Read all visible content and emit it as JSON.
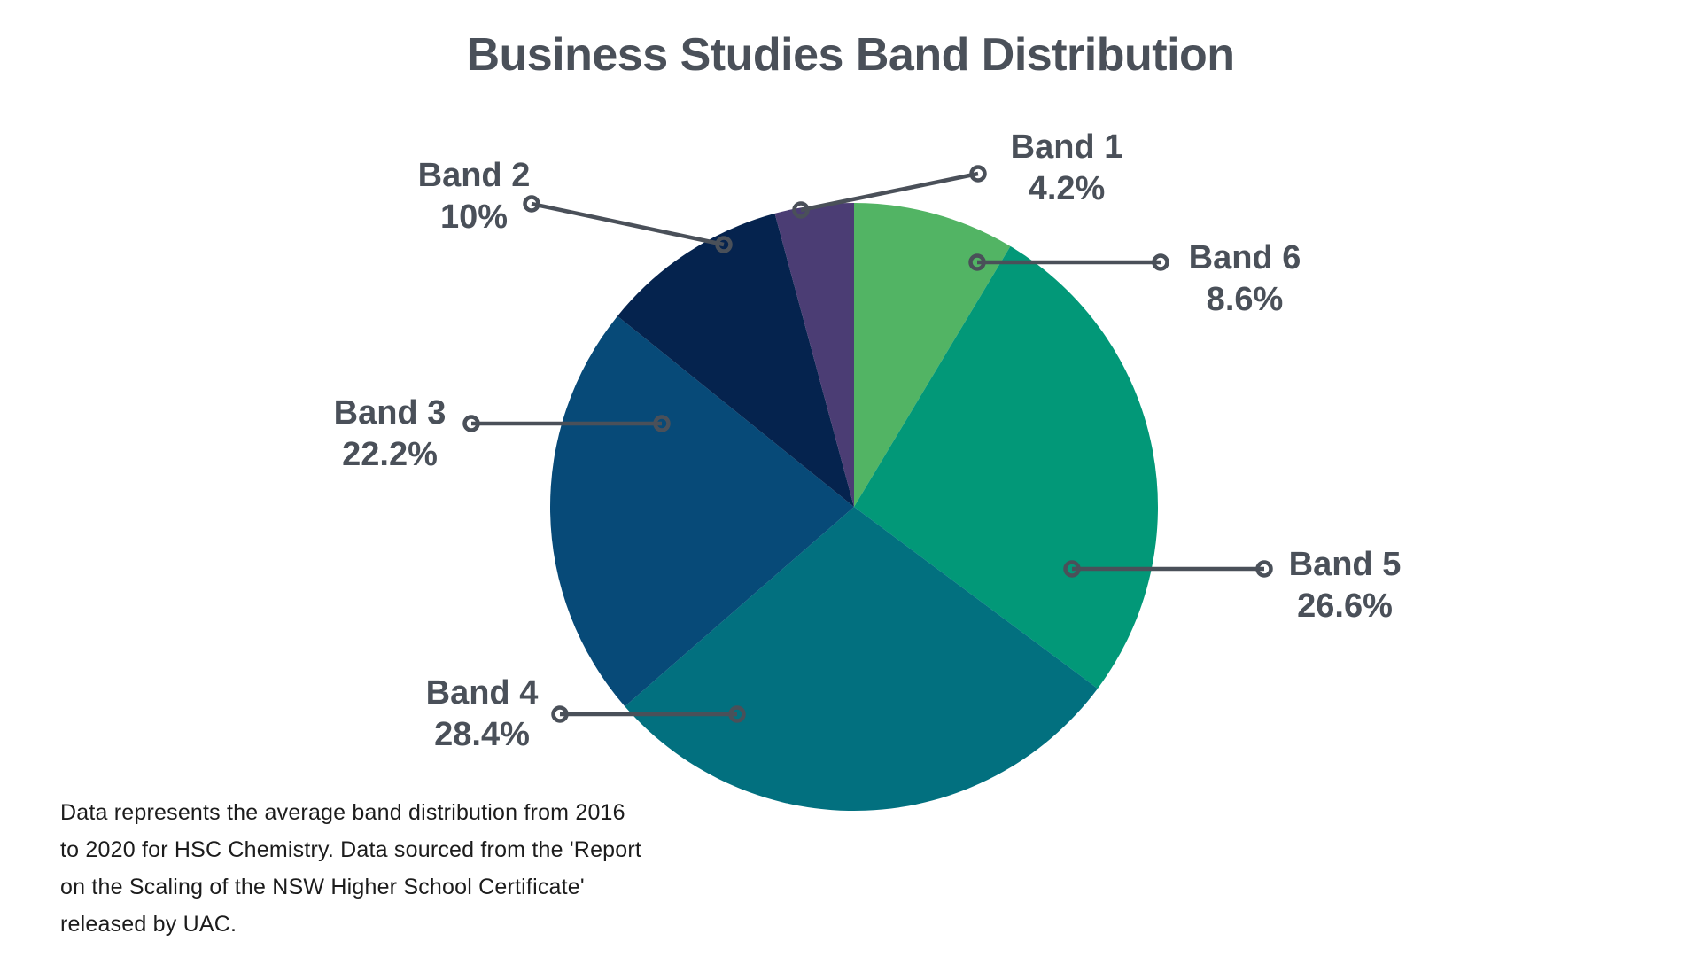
{
  "title": "Business Studies Band Distribution",
  "colors": {
    "background": "#ffffff",
    "heading_text": "#4a5059",
    "label_text": "#4a5059",
    "leader_line": "#4a5059",
    "footnote_text": "#1c1c1c"
  },
  "chart_data": {
    "type": "pie",
    "title": "Business Studies Band Distribution",
    "start_angle_deg": 0,
    "direction": "clockwise",
    "legend_position": "none",
    "slices": [
      {
        "label": "Band 6",
        "value": 8.6,
        "display": "8.6%",
        "color": "#52b464"
      },
      {
        "label": "Band 5",
        "value": 26.6,
        "display": "26.6%",
        "color": "#029878"
      },
      {
        "label": "Band 4",
        "value": 28.4,
        "display": "28.4%",
        "color": "#02707f"
      },
      {
        "label": "Band 3",
        "value": 22.2,
        "display": "22.2%",
        "color": "#074a78"
      },
      {
        "label": "Band 2",
        "value": 10,
        "display": "10%",
        "color": "#05234e"
      },
      {
        "label": "Band 1",
        "value": 4.2,
        "display": "4.2%",
        "color": "#4b3d74"
      }
    ]
  },
  "footnote": {
    "lines": [
      "Data represents the average band distribution from 2016",
      "to 2020 for HSC Chemistry. Data sourced from the 'Report",
      "on the Scaling of the NSW Higher School Certificate'",
      "released by UAC."
    ]
  }
}
